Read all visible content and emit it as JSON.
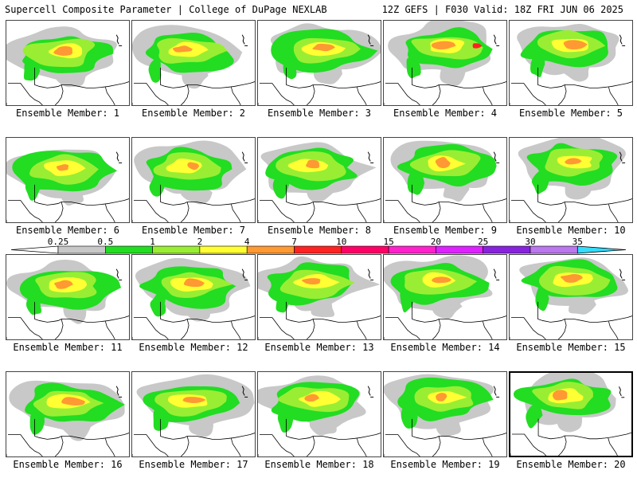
{
  "header": {
    "title_left": "Supercell Composite Parameter | College of DuPage NEXLAB",
    "title_right": "12Z GEFS | F030 Valid: 18Z FRI JUN 06 2025"
  },
  "colorbar": {
    "ticks": [
      "0.25",
      "0.5",
      "1",
      "2",
      "4",
      "7",
      "10",
      "15",
      "20",
      "25",
      "30",
      "35"
    ],
    "colors": [
      "#c8c8c8",
      "#22dd22",
      "#99ee33",
      "#ffff33",
      "#ff9933",
      "#ff2222",
      "#ff0066",
      "#ff22cc",
      "#dd22ff",
      "#8822dd",
      "#bb77ee",
      "#33ddff"
    ]
  },
  "contour_colors": {
    "light": "#c8c8c8",
    "green": "#22dd22",
    "lime": "#99ee33",
    "yellow": "#ffff33",
    "orange": "#ff9933",
    "red": "#ff2222"
  },
  "members": [
    {
      "label": "Ensemble Member: 1"
    },
    {
      "label": "Ensemble Member: 2"
    },
    {
      "label": "Ensemble Member: 3"
    },
    {
      "label": "Ensemble Member: 4"
    },
    {
      "label": "Ensemble Member: 5"
    },
    {
      "label": "Ensemble Member: 6"
    },
    {
      "label": "Ensemble Member: 7"
    },
    {
      "label": "Ensemble Member: 8"
    },
    {
      "label": "Ensemble Member: 9"
    },
    {
      "label": "Ensemble Member: 10"
    },
    {
      "label": "Ensemble Member: 11"
    },
    {
      "label": "Ensemble Member: 12"
    },
    {
      "label": "Ensemble Member: 13"
    },
    {
      "label": "Ensemble Member: 14"
    },
    {
      "label": "Ensemble Member: 15"
    },
    {
      "label": "Ensemble Member: 16"
    },
    {
      "label": "Ensemble Member: 17"
    },
    {
      "label": "Ensemble Member: 18"
    },
    {
      "label": "Ensemble Member: 19"
    },
    {
      "label": "Ensemble Member: 20"
    }
  ]
}
